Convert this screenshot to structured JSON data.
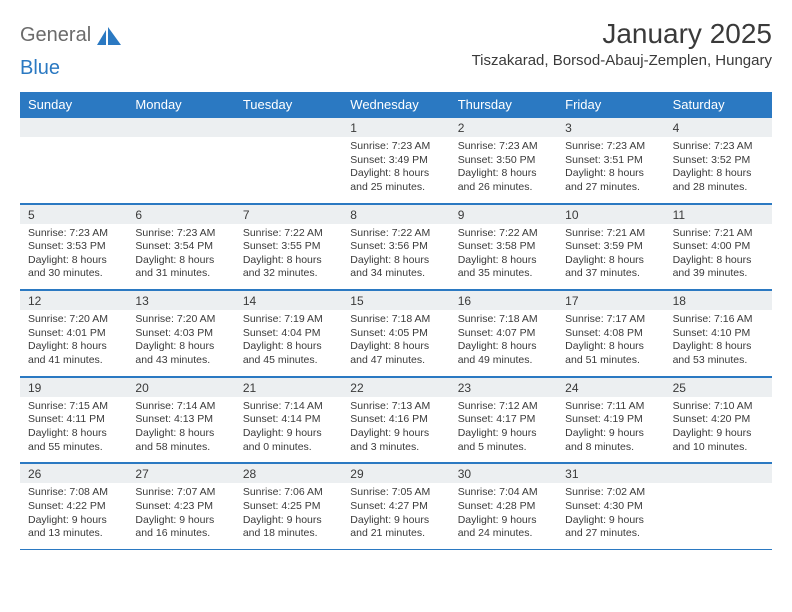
{
  "brand": {
    "part1": "General",
    "part2": "Blue"
  },
  "title": "January 2025",
  "location": "Tiszakarad, Borsod-Abauj-Zemplen, Hungary",
  "colors": {
    "header_bg": "#2b79c2",
    "header_text": "#ffffff",
    "daynum_bg": "#eceff1",
    "text": "#3a3a3a",
    "rule": "#2b79c2"
  },
  "day_labels": [
    "Sunday",
    "Monday",
    "Tuesday",
    "Wednesday",
    "Thursday",
    "Friday",
    "Saturday"
  ],
  "weeks": [
    {
      "nums": [
        "",
        "",
        "",
        "1",
        "2",
        "3",
        "4"
      ],
      "cells": [
        {
          "empty": true
        },
        {
          "empty": true
        },
        {
          "empty": true
        },
        {
          "sunrise": "Sunrise: 7:23 AM",
          "sunset": "Sunset: 3:49 PM",
          "dl1": "Daylight: 8 hours",
          "dl2": "and 25 minutes."
        },
        {
          "sunrise": "Sunrise: 7:23 AM",
          "sunset": "Sunset: 3:50 PM",
          "dl1": "Daylight: 8 hours",
          "dl2": "and 26 minutes."
        },
        {
          "sunrise": "Sunrise: 7:23 AM",
          "sunset": "Sunset: 3:51 PM",
          "dl1": "Daylight: 8 hours",
          "dl2": "and 27 minutes."
        },
        {
          "sunrise": "Sunrise: 7:23 AM",
          "sunset": "Sunset: 3:52 PM",
          "dl1": "Daylight: 8 hours",
          "dl2": "and 28 minutes."
        }
      ]
    },
    {
      "nums": [
        "5",
        "6",
        "7",
        "8",
        "9",
        "10",
        "11"
      ],
      "cells": [
        {
          "sunrise": "Sunrise: 7:23 AM",
          "sunset": "Sunset: 3:53 PM",
          "dl1": "Daylight: 8 hours",
          "dl2": "and 30 minutes."
        },
        {
          "sunrise": "Sunrise: 7:23 AM",
          "sunset": "Sunset: 3:54 PM",
          "dl1": "Daylight: 8 hours",
          "dl2": "and 31 minutes."
        },
        {
          "sunrise": "Sunrise: 7:22 AM",
          "sunset": "Sunset: 3:55 PM",
          "dl1": "Daylight: 8 hours",
          "dl2": "and 32 minutes."
        },
        {
          "sunrise": "Sunrise: 7:22 AM",
          "sunset": "Sunset: 3:56 PM",
          "dl1": "Daylight: 8 hours",
          "dl2": "and 34 minutes."
        },
        {
          "sunrise": "Sunrise: 7:22 AM",
          "sunset": "Sunset: 3:58 PM",
          "dl1": "Daylight: 8 hours",
          "dl2": "and 35 minutes."
        },
        {
          "sunrise": "Sunrise: 7:21 AM",
          "sunset": "Sunset: 3:59 PM",
          "dl1": "Daylight: 8 hours",
          "dl2": "and 37 minutes."
        },
        {
          "sunrise": "Sunrise: 7:21 AM",
          "sunset": "Sunset: 4:00 PM",
          "dl1": "Daylight: 8 hours",
          "dl2": "and 39 minutes."
        }
      ]
    },
    {
      "nums": [
        "12",
        "13",
        "14",
        "15",
        "16",
        "17",
        "18"
      ],
      "cells": [
        {
          "sunrise": "Sunrise: 7:20 AM",
          "sunset": "Sunset: 4:01 PM",
          "dl1": "Daylight: 8 hours",
          "dl2": "and 41 minutes."
        },
        {
          "sunrise": "Sunrise: 7:20 AM",
          "sunset": "Sunset: 4:03 PM",
          "dl1": "Daylight: 8 hours",
          "dl2": "and 43 minutes."
        },
        {
          "sunrise": "Sunrise: 7:19 AM",
          "sunset": "Sunset: 4:04 PM",
          "dl1": "Daylight: 8 hours",
          "dl2": "and 45 minutes."
        },
        {
          "sunrise": "Sunrise: 7:18 AM",
          "sunset": "Sunset: 4:05 PM",
          "dl1": "Daylight: 8 hours",
          "dl2": "and 47 minutes."
        },
        {
          "sunrise": "Sunrise: 7:18 AM",
          "sunset": "Sunset: 4:07 PM",
          "dl1": "Daylight: 8 hours",
          "dl2": "and 49 minutes."
        },
        {
          "sunrise": "Sunrise: 7:17 AM",
          "sunset": "Sunset: 4:08 PM",
          "dl1": "Daylight: 8 hours",
          "dl2": "and 51 minutes."
        },
        {
          "sunrise": "Sunrise: 7:16 AM",
          "sunset": "Sunset: 4:10 PM",
          "dl1": "Daylight: 8 hours",
          "dl2": "and 53 minutes."
        }
      ]
    },
    {
      "nums": [
        "19",
        "20",
        "21",
        "22",
        "23",
        "24",
        "25"
      ],
      "cells": [
        {
          "sunrise": "Sunrise: 7:15 AM",
          "sunset": "Sunset: 4:11 PM",
          "dl1": "Daylight: 8 hours",
          "dl2": "and 55 minutes."
        },
        {
          "sunrise": "Sunrise: 7:14 AM",
          "sunset": "Sunset: 4:13 PM",
          "dl1": "Daylight: 8 hours",
          "dl2": "and 58 minutes."
        },
        {
          "sunrise": "Sunrise: 7:14 AM",
          "sunset": "Sunset: 4:14 PM",
          "dl1": "Daylight: 9 hours",
          "dl2": "and 0 minutes."
        },
        {
          "sunrise": "Sunrise: 7:13 AM",
          "sunset": "Sunset: 4:16 PM",
          "dl1": "Daylight: 9 hours",
          "dl2": "and 3 minutes."
        },
        {
          "sunrise": "Sunrise: 7:12 AM",
          "sunset": "Sunset: 4:17 PM",
          "dl1": "Daylight: 9 hours",
          "dl2": "and 5 minutes."
        },
        {
          "sunrise": "Sunrise: 7:11 AM",
          "sunset": "Sunset: 4:19 PM",
          "dl1": "Daylight: 9 hours",
          "dl2": "and 8 minutes."
        },
        {
          "sunrise": "Sunrise: 7:10 AM",
          "sunset": "Sunset: 4:20 PM",
          "dl1": "Daylight: 9 hours",
          "dl2": "and 10 minutes."
        }
      ]
    },
    {
      "nums": [
        "26",
        "27",
        "28",
        "29",
        "30",
        "31",
        ""
      ],
      "cells": [
        {
          "sunrise": "Sunrise: 7:08 AM",
          "sunset": "Sunset: 4:22 PM",
          "dl1": "Daylight: 9 hours",
          "dl2": "and 13 minutes."
        },
        {
          "sunrise": "Sunrise: 7:07 AM",
          "sunset": "Sunset: 4:23 PM",
          "dl1": "Daylight: 9 hours",
          "dl2": "and 16 minutes."
        },
        {
          "sunrise": "Sunrise: 7:06 AM",
          "sunset": "Sunset: 4:25 PM",
          "dl1": "Daylight: 9 hours",
          "dl2": "and 18 minutes."
        },
        {
          "sunrise": "Sunrise: 7:05 AM",
          "sunset": "Sunset: 4:27 PM",
          "dl1": "Daylight: 9 hours",
          "dl2": "and 21 minutes."
        },
        {
          "sunrise": "Sunrise: 7:04 AM",
          "sunset": "Sunset: 4:28 PM",
          "dl1": "Daylight: 9 hours",
          "dl2": "and 24 minutes."
        },
        {
          "sunrise": "Sunrise: 7:02 AM",
          "sunset": "Sunset: 4:30 PM",
          "dl1": "Daylight: 9 hours",
          "dl2": "and 27 minutes."
        },
        {
          "empty": true
        }
      ]
    }
  ]
}
